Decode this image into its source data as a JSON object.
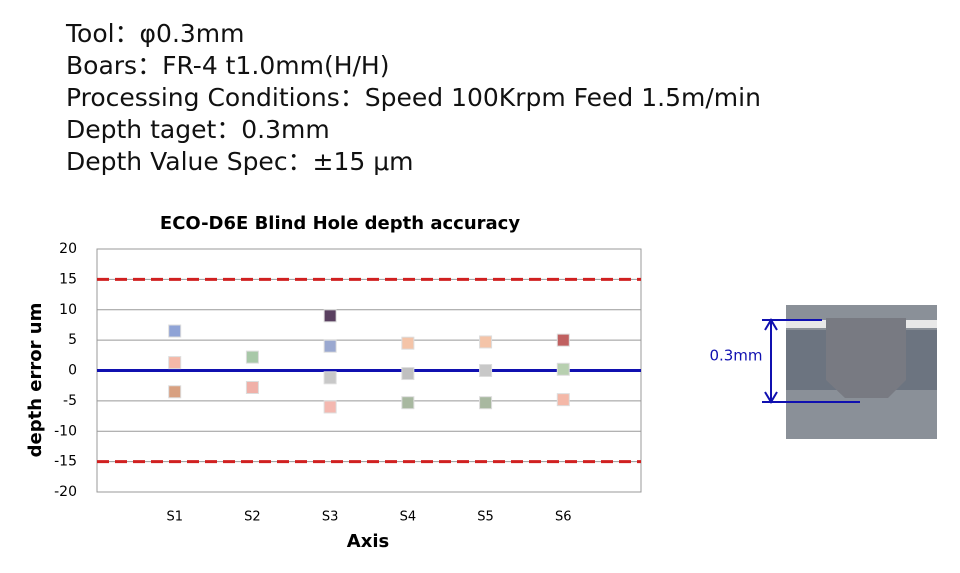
{
  "header": {
    "lines": [
      "Tool：φ0.3mm",
      "Boars：FR-4 t1.0mm(H/H)",
      "Processing Conditions：Speed 100Krpm Feed 1.5m/min",
      "Depth taget：0.3mm",
      "Depth Value Spec：±15 μm"
    ]
  },
  "chart_data": {
    "type": "scatter",
    "title": "ECO-D6E Blind Hole depth accuracy",
    "y_label": "depth error  um",
    "x_label": "Axis",
    "categories": [
      "S1",
      "S2",
      "S3",
      "S4",
      "S5",
      "S6"
    ],
    "series": [
      {
        "colors": [
          "#8fa3d6",
          "#a8c8a8",
          "#5a4060",
          "#f4c4a8",
          "#f4c4a8",
          "#c06060"
        ],
        "values": [
          6.5,
          2.2,
          9,
          4.5,
          4.7,
          5
        ]
      },
      {
        "colors": [
          "#f4b8a8",
          "#f0b0a8",
          "#9aa8d0",
          "#c0c0c0",
          "#c8c8c8",
          "#b8d0b0"
        ],
        "values": [
          1.3,
          -2.8,
          4,
          -0.5,
          0,
          0.2
        ]
      },
      {
        "colors": [
          "#d8a080",
          null,
          "#c8c8c8",
          "#a8b8a0",
          "#a8b8a0",
          "#f4b8a8"
        ],
        "values": [
          -3.5,
          null,
          -1.2,
          -5.3,
          -5.3,
          -4.8
        ]
      },
      {
        "colors": [
          null,
          null,
          "#f4b8b0",
          null,
          null,
          null
        ],
        "values": [
          null,
          null,
          -6,
          null,
          null,
          null
        ]
      }
    ],
    "reference_lines": [
      {
        "value": 15,
        "color": "#d02020",
        "dashed": true
      },
      {
        "value": -15,
        "color": "#d02020",
        "dashed": true
      },
      {
        "value": 0,
        "color": "#1010b0",
        "dashed": false
      }
    ],
    "ylim": [
      -20,
      20
    ],
    "yticks": [
      -20,
      -15,
      -10,
      -5,
      0,
      5,
      10,
      15,
      20
    ],
    "grid": true
  },
  "image_label": "0.3mm"
}
